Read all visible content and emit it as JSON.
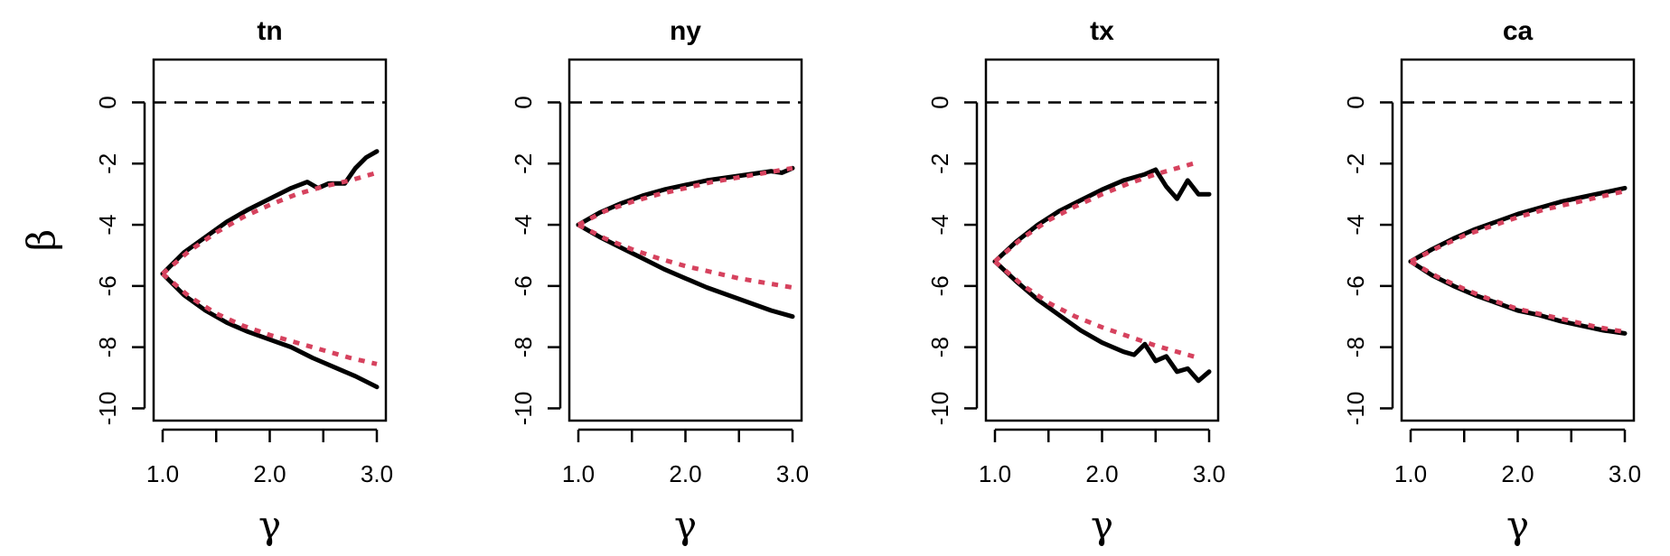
{
  "figure": {
    "xlabel": "γ",
    "ylabel": "β",
    "colors": {
      "empirical": "#000000",
      "model": "#d6425e",
      "reference": "#000000"
    },
    "x_ticks": [
      "1.0",
      "2.0",
      "3.0"
    ],
    "y_ticks": [
      "0",
      "-2",
      "-4",
      "-6",
      "-8",
      "-10"
    ]
  },
  "chart_data": [
    {
      "type": "line",
      "title": "tn",
      "xlabel": "γ",
      "ylabel": "β",
      "xlim": [
        1.0,
        3.0
      ],
      "ylim": [
        -10.4,
        1.4
      ],
      "x_ticks": [
        1.0,
        1.5,
        2.0,
        2.5,
        3.0
      ],
      "x_tick_labels": [
        "1.0",
        "2.0",
        "3.0"
      ],
      "y_ticks": [
        0,
        -2,
        -4,
        -6,
        -8,
        -10
      ],
      "reference_line": 0,
      "series": [
        {
          "style": "solid",
          "color": "#000000",
          "x": [
            1.0,
            1.2,
            1.4,
            1.6,
            1.8,
            2.0,
            2.2,
            2.35,
            2.45,
            2.55,
            2.7,
            2.8,
            2.9,
            3.0
          ],
          "y": [
            -5.6,
            -4.9,
            -4.4,
            -3.9,
            -3.5,
            -3.15,
            -2.8,
            -2.6,
            -2.8,
            -2.65,
            -2.65,
            -2.15,
            -1.8,
            -1.6
          ]
        },
        {
          "style": "solid",
          "color": "#000000",
          "x": [
            1.0,
            1.2,
            1.4,
            1.6,
            1.8,
            2.0,
            2.2,
            2.4,
            2.6,
            2.8,
            3.0
          ],
          "y": [
            -5.6,
            -6.3,
            -6.8,
            -7.2,
            -7.5,
            -7.75,
            -8.0,
            -8.35,
            -8.65,
            -8.95,
            -9.3
          ]
        },
        {
          "style": "dotted",
          "color": "#d6425e",
          "x": [
            1.0,
            1.25,
            1.5,
            1.75,
            2.0,
            2.25,
            2.5,
            2.75,
            3.0
          ],
          "y": [
            -5.6,
            -4.85,
            -4.25,
            -3.75,
            -3.35,
            -3.0,
            -2.75,
            -2.55,
            -2.3
          ]
        },
        {
          "style": "dotted",
          "color": "#d6425e",
          "x": [
            1.0,
            1.25,
            1.5,
            1.75,
            2.0,
            2.25,
            2.5,
            2.75,
            3.0
          ],
          "y": [
            -5.6,
            -6.35,
            -6.9,
            -7.3,
            -7.6,
            -7.85,
            -8.1,
            -8.35,
            -8.55
          ]
        }
      ]
    },
    {
      "type": "line",
      "title": "ny",
      "xlabel": "γ",
      "ylabel": "β",
      "xlim": [
        1.0,
        3.0
      ],
      "ylim": [
        -10.4,
        1.4
      ],
      "x_ticks": [
        1.0,
        1.5,
        2.0,
        2.5,
        3.0
      ],
      "x_tick_labels": [
        "1.0",
        "2.0",
        "3.0"
      ],
      "y_ticks": [
        0,
        -2,
        -4,
        -6,
        -8,
        -10
      ],
      "reference_line": 0,
      "series": [
        {
          "style": "solid",
          "color": "#000000",
          "x": [
            1.0,
            1.2,
            1.4,
            1.6,
            1.8,
            2.0,
            2.2,
            2.4,
            2.6,
            2.8,
            2.9,
            3.0
          ],
          "y": [
            -4.0,
            -3.6,
            -3.3,
            -3.05,
            -2.85,
            -2.7,
            -2.55,
            -2.45,
            -2.35,
            -2.25,
            -2.3,
            -2.15
          ]
        },
        {
          "style": "solid",
          "color": "#000000",
          "x": [
            1.0,
            1.2,
            1.4,
            1.6,
            1.8,
            2.0,
            2.2,
            2.4,
            2.6,
            2.8,
            3.0
          ],
          "y": [
            -4.0,
            -4.4,
            -4.75,
            -5.1,
            -5.45,
            -5.75,
            -6.05,
            -6.3,
            -6.55,
            -6.8,
            -7.0
          ]
        },
        {
          "style": "dotted",
          "color": "#d6425e",
          "x": [
            1.0,
            1.25,
            1.5,
            1.75,
            2.0,
            2.25,
            2.5,
            2.75,
            3.0
          ],
          "y": [
            -4.0,
            -3.55,
            -3.25,
            -3.0,
            -2.8,
            -2.6,
            -2.45,
            -2.3,
            -2.15
          ]
        },
        {
          "style": "dotted",
          "color": "#d6425e",
          "x": [
            1.0,
            1.25,
            1.5,
            1.75,
            2.0,
            2.25,
            2.5,
            2.75,
            3.0
          ],
          "y": [
            -4.0,
            -4.45,
            -4.8,
            -5.1,
            -5.35,
            -5.55,
            -5.75,
            -5.9,
            -6.05
          ]
        }
      ]
    },
    {
      "type": "line",
      "title": "tx",
      "xlabel": "γ",
      "ylabel": "β",
      "xlim": [
        1.0,
        3.0
      ],
      "ylim": [
        -10.4,
        1.4
      ],
      "x_ticks": [
        1.0,
        1.5,
        2.0,
        2.5,
        3.0
      ],
      "x_tick_labels": [
        "1.0",
        "2.0",
        "3.0"
      ],
      "y_ticks": [
        0,
        -2,
        -4,
        -6,
        -8,
        -10
      ],
      "reference_line": 0,
      "series": [
        {
          "style": "solid",
          "color": "#000000",
          "x": [
            1.0,
            1.2,
            1.4,
            1.6,
            1.8,
            2.0,
            2.2,
            2.4,
            2.5,
            2.6,
            2.7,
            2.8,
            2.9,
            3.0
          ],
          "y": [
            -5.2,
            -4.55,
            -4.0,
            -3.55,
            -3.2,
            -2.85,
            -2.55,
            -2.35,
            -2.2,
            -2.75,
            -3.15,
            -2.55,
            -3.0,
            -3.0
          ]
        },
        {
          "style": "solid",
          "color": "#000000",
          "x": [
            1.0,
            1.2,
            1.4,
            1.6,
            1.8,
            2.0,
            2.2,
            2.3,
            2.4,
            2.5,
            2.6,
            2.7,
            2.8,
            2.9,
            3.0
          ],
          "y": [
            -5.2,
            -5.85,
            -6.45,
            -6.95,
            -7.45,
            -7.85,
            -8.15,
            -8.25,
            -7.9,
            -8.45,
            -8.3,
            -8.8,
            -8.7,
            -9.1,
            -8.8
          ]
        },
        {
          "style": "dotted",
          "color": "#d6425e",
          "x": [
            1.0,
            1.25,
            1.5,
            1.75,
            2.0,
            2.25,
            2.5,
            2.75,
            2.9
          ],
          "y": [
            -5.2,
            -4.45,
            -3.85,
            -3.4,
            -3.0,
            -2.65,
            -2.35,
            -2.1,
            -1.95
          ]
        },
        {
          "style": "dotted",
          "color": "#d6425e",
          "x": [
            1.0,
            1.25,
            1.5,
            1.75,
            2.0,
            2.25,
            2.5,
            2.75,
            2.9
          ],
          "y": [
            -5.2,
            -5.95,
            -6.55,
            -7.0,
            -7.35,
            -7.65,
            -7.95,
            -8.2,
            -8.35
          ]
        }
      ]
    },
    {
      "type": "line",
      "title": "ca",
      "xlabel": "γ",
      "ylabel": "β",
      "xlim": [
        1.0,
        3.0
      ],
      "ylim": [
        -10.4,
        1.4
      ],
      "x_ticks": [
        1.0,
        1.5,
        2.0,
        2.5,
        3.0
      ],
      "x_tick_labels": [
        "1.0",
        "2.0",
        "3.0"
      ],
      "y_ticks": [
        0,
        -2,
        -4,
        -6,
        -8,
        -10
      ],
      "reference_line": 0,
      "series": [
        {
          "style": "solid",
          "color": "#000000",
          "x": [
            1.0,
            1.2,
            1.4,
            1.6,
            1.8,
            2.0,
            2.2,
            2.4,
            2.6,
            2.8,
            3.0
          ],
          "y": [
            -5.2,
            -4.8,
            -4.45,
            -4.15,
            -3.9,
            -3.65,
            -3.45,
            -3.25,
            -3.1,
            -2.95,
            -2.8
          ]
        },
        {
          "style": "solid",
          "color": "#000000",
          "x": [
            1.0,
            1.2,
            1.4,
            1.6,
            1.8,
            2.0,
            2.2,
            2.4,
            2.6,
            2.8,
            3.0
          ],
          "y": [
            -5.2,
            -5.65,
            -6.0,
            -6.3,
            -6.55,
            -6.8,
            -6.95,
            -7.15,
            -7.3,
            -7.45,
            -7.55
          ]
        },
        {
          "style": "dotted",
          "color": "#d6425e",
          "x": [
            1.0,
            1.25,
            1.5,
            1.75,
            2.0,
            2.25,
            2.5,
            2.75,
            3.0
          ],
          "y": [
            -5.2,
            -4.75,
            -4.35,
            -4.05,
            -3.75,
            -3.5,
            -3.3,
            -3.1,
            -2.9
          ]
        },
        {
          "style": "dotted",
          "color": "#d6425e",
          "x": [
            1.0,
            1.25,
            1.5,
            1.75,
            2.0,
            2.25,
            2.5,
            2.75,
            3.0
          ],
          "y": [
            -5.2,
            -5.7,
            -6.1,
            -6.45,
            -6.75,
            -6.95,
            -7.15,
            -7.35,
            -7.5
          ]
        }
      ]
    }
  ]
}
